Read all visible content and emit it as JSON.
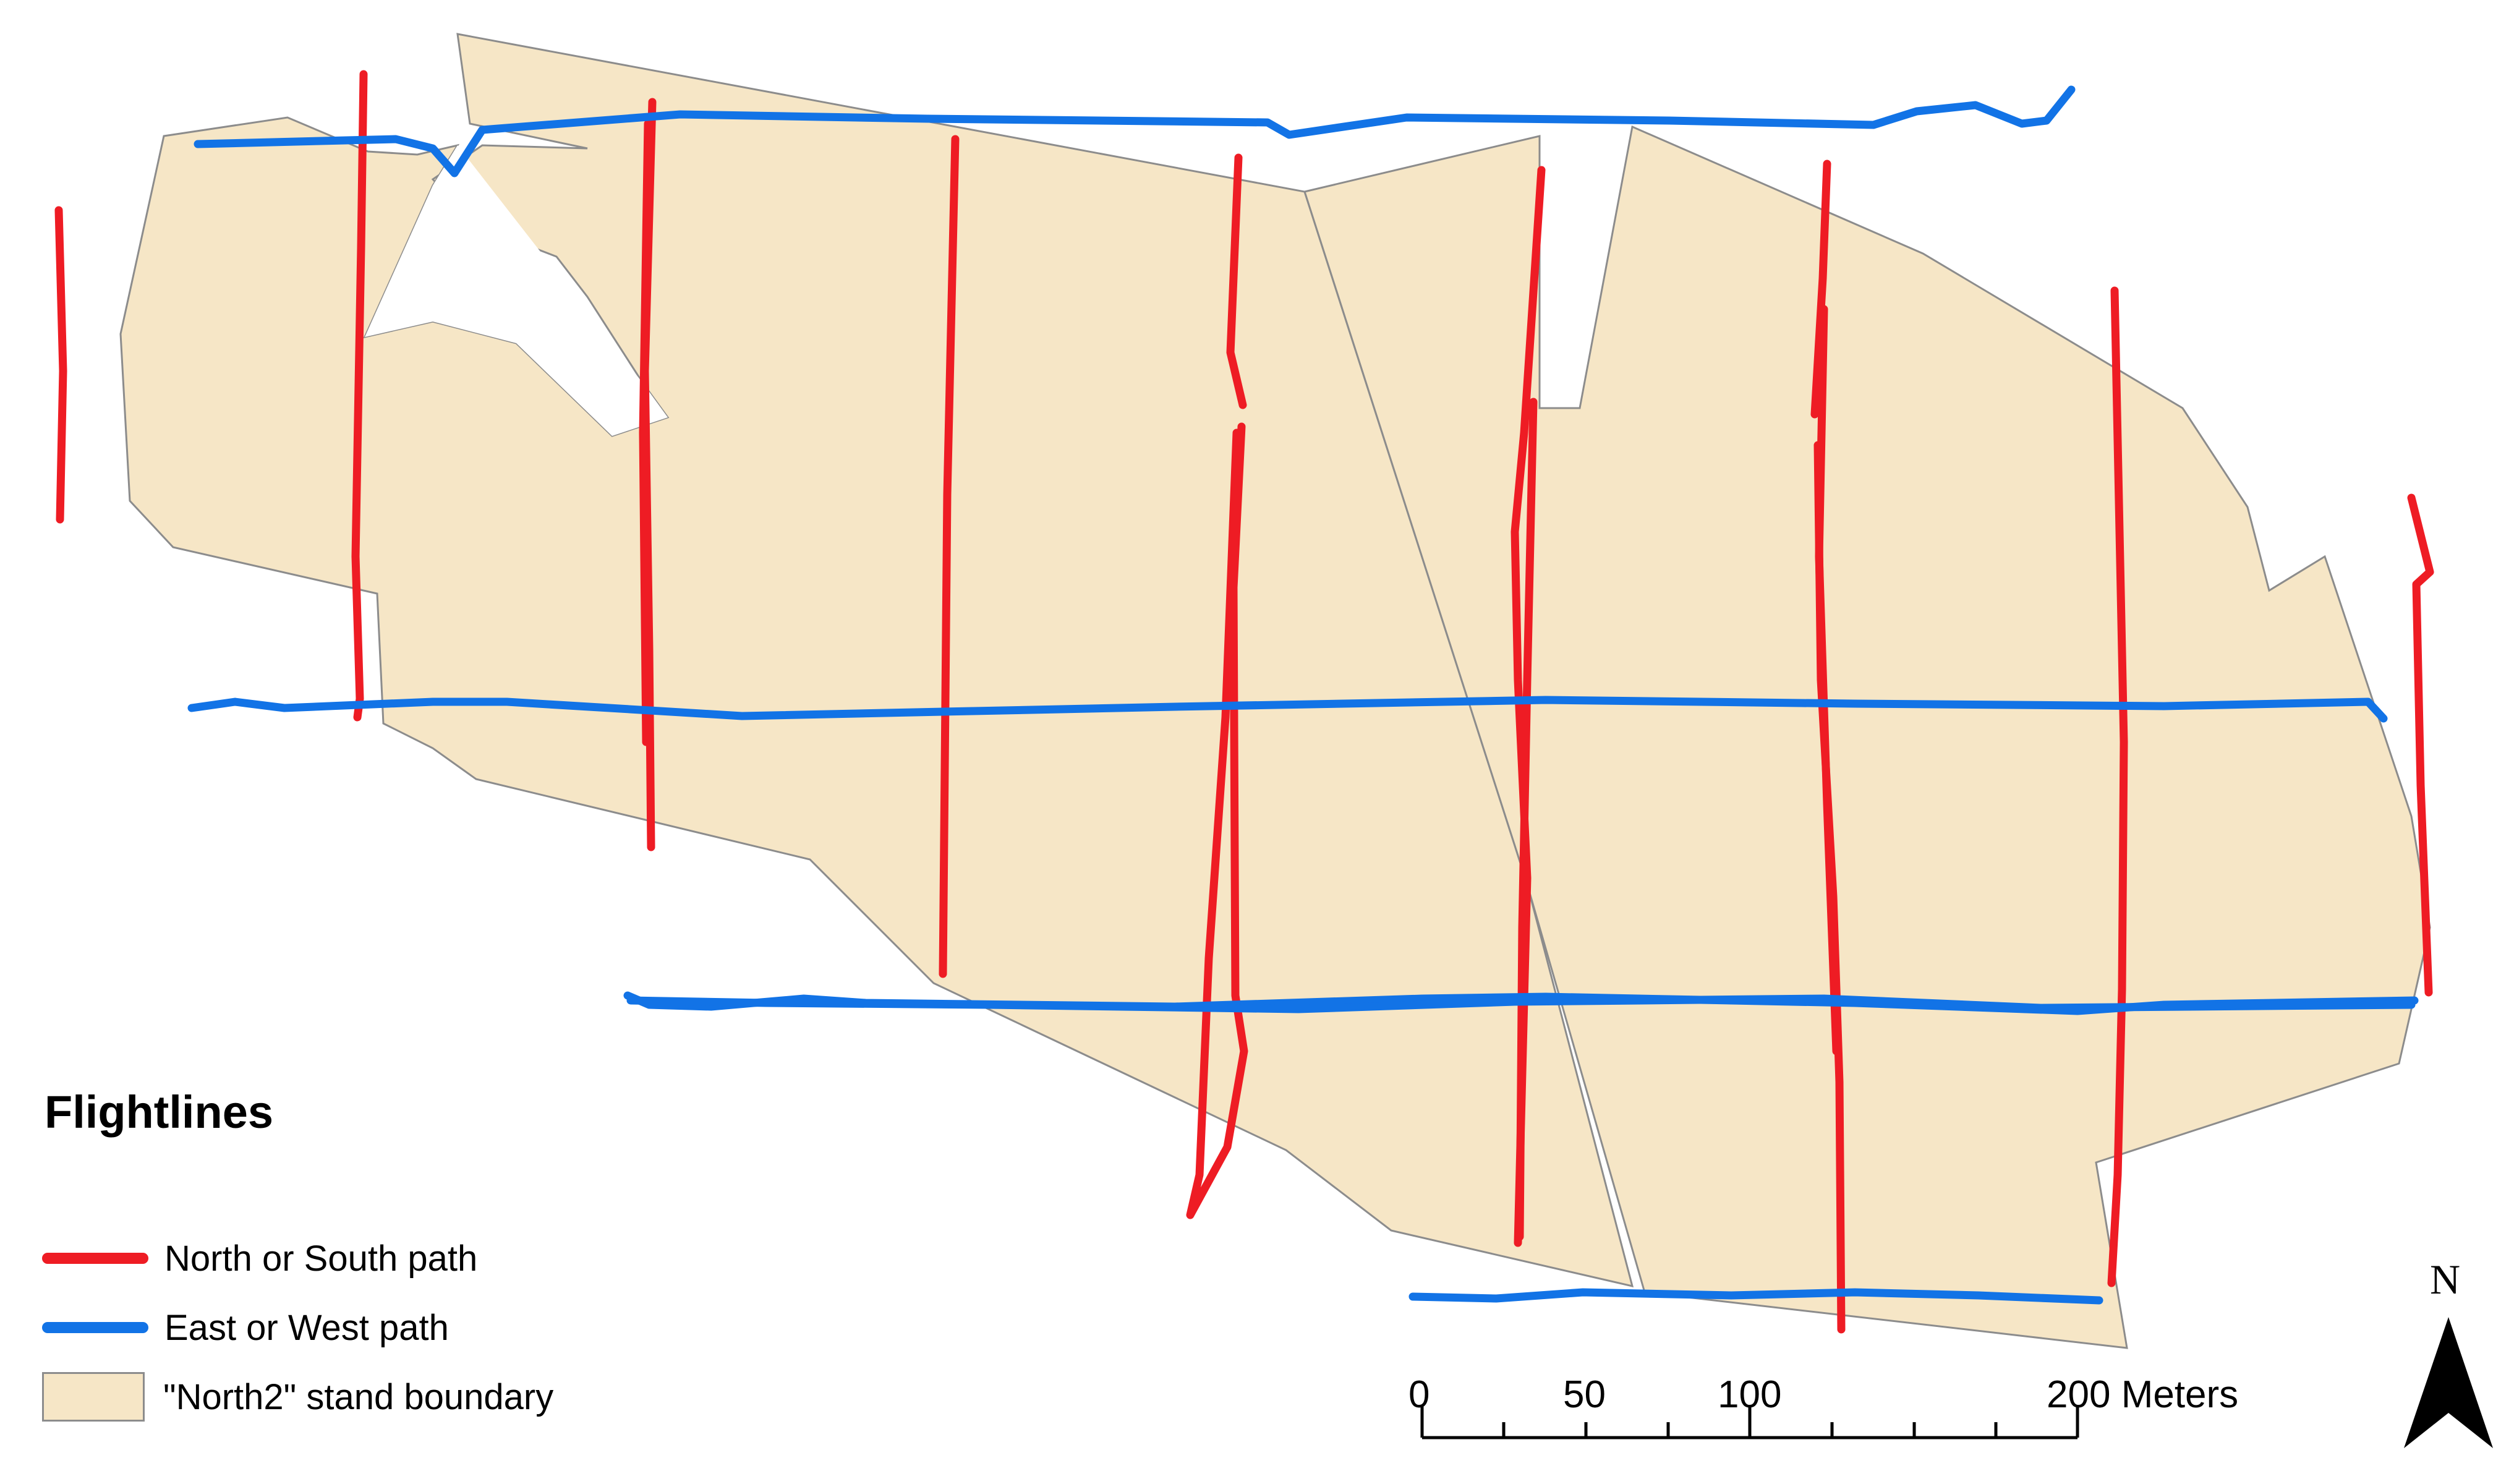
{
  "legend": {
    "title": "Flightlines",
    "items": [
      {
        "label": "North or South path",
        "color": "#ee1c24"
      },
      {
        "label": "East or West path",
        "color": "#1273e6"
      },
      {
        "label": "\"North2\" stand boundary",
        "color": "#f6e6c6"
      }
    ]
  },
  "scale_bar": {
    "labels": [
      "0",
      "50",
      "100",
      "200"
    ],
    "unit": "Meters"
  },
  "north_arrow": {
    "label": "N",
    "icon": "north-arrow-icon"
  },
  "colors": {
    "north_south_path": "#ee1c24",
    "east_west_path": "#1273e6",
    "stand_fill": "#f6e6c6",
    "stand_outline": "#8c8c8c"
  }
}
